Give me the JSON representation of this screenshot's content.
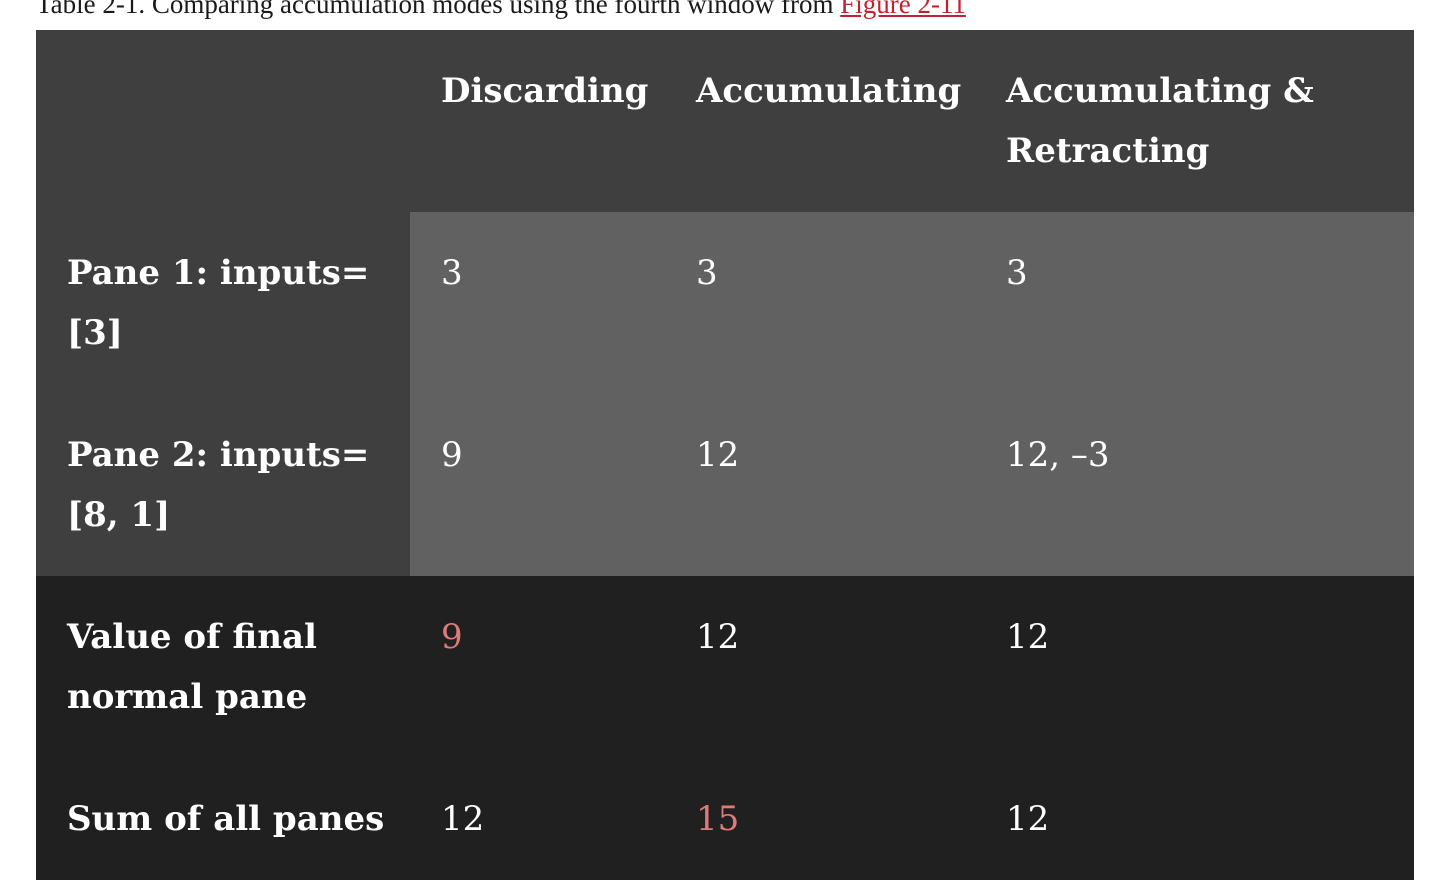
{
  "caption": {
    "text": "Table 2-1. Comparing accumulation modes using the fourth window from ",
    "link": "Figure 2-11"
  },
  "table": {
    "corner": "",
    "columns": [
      "Discarding",
      "Accumulating",
      "Accumulating & Retracting"
    ],
    "rows": [
      {
        "label": "Pane 1: inputs=[3]",
        "cells": [
          "3",
          "3",
          "3"
        ]
      },
      {
        "label": "Pane 2: inputs=[8, 1]",
        "cells": [
          "9",
          "12",
          "12, –3"
        ]
      },
      {
        "label": "Value of final normal pane",
        "cells": [
          "9",
          "12",
          "12"
        ]
      },
      {
        "label": "Sum of all panes",
        "cells": [
          "12",
          "15",
          "12"
        ]
      }
    ]
  },
  "colors": {
    "header_bg": "#3f3f3f",
    "pane_cell_bg": "#616161",
    "result_bg": "#202020",
    "highlight": "#e07a7a",
    "link": "#c4202d"
  }
}
